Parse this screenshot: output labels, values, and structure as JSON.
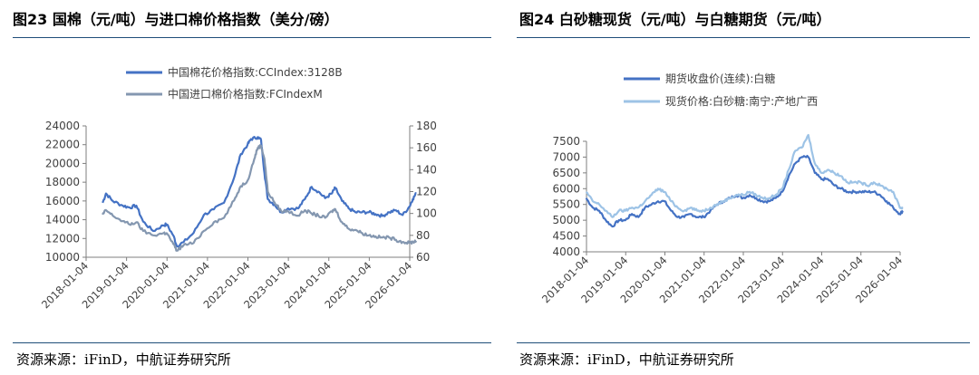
{
  "left": {
    "title": "图23 国棉（元/吨）与进口棉价格指数（美分/磅）",
    "source": "资源来源：iFinD，中航证券研究所"
  },
  "right": {
    "title": "图24 白砂糖现货（元/吨）与白糖期货（元/吨）",
    "source": "资源来源：iFinD，中航证券研究所"
  },
  "chart_data": [
    {
      "type": "line",
      "title": "图23 国棉（元/吨）与进口棉价格指数（美分/磅）",
      "x_ticks": [
        "2018-01-04",
        "2019-01-04",
        "2020-01-04",
        "2021-01-04",
        "2022-01-04",
        "2023-01-04",
        "2024-01-04",
        "2025-01-04",
        "2026-01-04"
      ],
      "ylim": [
        10000,
        24000
      ],
      "yticks": [
        10000,
        12000,
        14000,
        16000,
        18000,
        20000,
        22000,
        24000
      ],
      "y2lim": [
        60,
        180
      ],
      "y2ticks": [
        60,
        80,
        100,
        120,
        140,
        160,
        180
      ],
      "legend_position": "top-center",
      "series": [
        {
          "name": "中国棉花价格指数:CCIndex:3128B",
          "axis": "left",
          "color": "#4472c4",
          "points": [
            [
              "2018-06",
              15800
            ],
            [
              "2018-07",
              16800
            ],
            [
              "2018-09",
              16000
            ],
            [
              "2018-12",
              15500
            ],
            [
              "2019-02",
              15300
            ],
            [
              "2019-04",
              15500
            ],
            [
              "2019-06",
              13800
            ],
            [
              "2019-09",
              12800
            ],
            [
              "2019-12",
              13400
            ],
            [
              "2020-01",
              13500
            ],
            [
              "2020-03",
              12300
            ],
            [
              "2020-04",
              11200
            ],
            [
              "2020-06",
              11600
            ],
            [
              "2020-09",
              12600
            ],
            [
              "2020-12",
              14500
            ],
            [
              "2021-03",
              15100
            ],
            [
              "2021-06",
              15800
            ],
            [
              "2021-09",
              18500
            ],
            [
              "2021-11",
              21000
            ],
            [
              "2022-01",
              22000
            ],
            [
              "2022-02",
              22600
            ],
            [
              "2022-04",
              22800
            ],
            [
              "2022-05",
              22500
            ],
            [
              "2022-06",
              19000
            ],
            [
              "2022-07",
              16200
            ],
            [
              "2022-09",
              15600
            ],
            [
              "2022-11",
              14800
            ],
            [
              "2023-01",
              15200
            ],
            [
              "2023-04",
              15200
            ],
            [
              "2023-06",
              16200
            ],
            [
              "2023-08",
              17500
            ],
            [
              "2023-10",
              17000
            ],
            [
              "2023-12",
              16300
            ],
            [
              "2024-02",
              16800
            ],
            [
              "2024-03",
              17400
            ],
            [
              "2024-05",
              16000
            ],
            [
              "2024-07",
              15200
            ],
            [
              "2024-09",
              14800
            ],
            [
              "2024-11",
              14800
            ],
            [
              "2025-01",
              14800
            ],
            [
              "2025-03",
              14600
            ],
            [
              "2025-05",
              14400
            ],
            [
              "2025-07",
              14800
            ],
            [
              "2025-09",
              15000
            ],
            [
              "2025-11",
              14500
            ],
            [
              "2026-01",
              15400
            ],
            [
              "2026-02",
              16200
            ],
            [
              "2026-03",
              16800
            ]
          ]
        },
        {
          "name": "中国进口棉价格指数:FCIndexM",
          "axis": "right",
          "color": "#8497b0",
          "points": [
            [
              "2018-06",
              99
            ],
            [
              "2018-07",
              103
            ],
            [
              "2018-09",
              98
            ],
            [
              "2018-12",
              93
            ],
            [
              "2019-02",
              90
            ],
            [
              "2019-04",
              92
            ],
            [
              "2019-06",
              84
            ],
            [
              "2019-09",
              80
            ],
            [
              "2019-12",
              82
            ],
            [
              "2020-01",
              82
            ],
            [
              "2020-03",
              72
            ],
            [
              "2020-04",
              66
            ],
            [
              "2020-06",
              71
            ],
            [
              "2020-09",
              73
            ],
            [
              "2020-12",
              84
            ],
            [
              "2021-03",
              92
            ],
            [
              "2021-06",
              96
            ],
            [
              "2021-09",
              112
            ],
            [
              "2021-11",
              125
            ],
            [
              "2022-01",
              130
            ],
            [
              "2022-03",
              150
            ],
            [
              "2022-04",
              160
            ],
            [
              "2022-05",
              162
            ],
            [
              "2022-06",
              150
            ],
            [
              "2022-07",
              120
            ],
            [
              "2022-09",
              110
            ],
            [
              "2022-11",
              102
            ],
            [
              "2023-01",
              102
            ],
            [
              "2023-04",
              98
            ],
            [
              "2023-06",
              103
            ],
            [
              "2023-08",
              100
            ],
            [
              "2023-10",
              98
            ],
            [
              "2023-12",
              96
            ],
            [
              "2024-02",
              102
            ],
            [
              "2024-03",
              104
            ],
            [
              "2024-05",
              92
            ],
            [
              "2024-07",
              86
            ],
            [
              "2024-09",
              85
            ],
            [
              "2024-11",
              82
            ],
            [
              "2025-01",
              80
            ],
            [
              "2025-03",
              79
            ],
            [
              "2025-05",
              78
            ],
            [
              "2025-07",
              78
            ],
            [
              "2025-09",
              76
            ],
            [
              "2025-11",
              74
            ],
            [
              "2026-01",
              73
            ],
            [
              "2026-02",
              74
            ],
            [
              "2026-03",
              75
            ]
          ]
        }
      ]
    },
    {
      "type": "line",
      "title": "图24 白砂糖现货（元/吨）与白糖期货（元/吨）",
      "x_ticks": [
        "2018-01-04",
        "2019-01-04",
        "2020-01-04",
        "2021-01-04",
        "2022-01-04",
        "2023-01-04",
        "2024-01-04",
        "2025-01-04",
        "2026-01-04"
      ],
      "ylim": [
        4000,
        7500
      ],
      "yticks": [
        4000,
        4500,
        5000,
        5500,
        6000,
        6500,
        7000,
        7500
      ],
      "legend_position": "top-center",
      "series": [
        {
          "name": "期货收盘价(连续):白糖",
          "axis": "left",
          "color": "#4472c4",
          "points": [
            [
              "2018-01",
              5700
            ],
            [
              "2018-03",
              5400
            ],
            [
              "2018-05",
              5300
            ],
            [
              "2018-07",
              5000
            ],
            [
              "2018-09",
              4800
            ],
            [
              "2018-11",
              5000
            ],
            [
              "2019-01",
              5000
            ],
            [
              "2019-03",
              5200
            ],
            [
              "2019-05",
              5100
            ],
            [
              "2019-07",
              5400
            ],
            [
              "2019-09",
              5500
            ],
            [
              "2019-11",
              5600
            ],
            [
              "2020-01",
              5600
            ],
            [
              "2020-03",
              5300
            ],
            [
              "2020-05",
              5100
            ],
            [
              "2020-07",
              5100
            ],
            [
              "2020-09",
              5200
            ],
            [
              "2020-11",
              5100
            ],
            [
              "2021-01",
              5100
            ],
            [
              "2021-03",
              5300
            ],
            [
              "2021-05",
              5500
            ],
            [
              "2021-07",
              5600
            ],
            [
              "2021-09",
              5700
            ],
            [
              "2021-11",
              5800
            ],
            [
              "2022-01",
              5700
            ],
            [
              "2022-03",
              5800
            ],
            [
              "2022-05",
              5700
            ],
            [
              "2022-07",
              5600
            ],
            [
              "2022-09",
              5600
            ],
            [
              "2022-11",
              5700
            ],
            [
              "2023-01",
              5900
            ],
            [
              "2023-03",
              6400
            ],
            [
              "2023-05",
              6800
            ],
            [
              "2023-07",
              7000
            ],
            [
              "2023-09",
              7000
            ],
            [
              "2023-11",
              6500
            ],
            [
              "2024-01",
              6300
            ],
            [
              "2024-03",
              6300
            ],
            [
              "2024-05",
              6100
            ],
            [
              "2024-07",
              6000
            ],
            [
              "2024-09",
              5900
            ],
            [
              "2024-11",
              5900
            ],
            [
              "2025-01",
              5900
            ],
            [
              "2025-03",
              5900
            ],
            [
              "2025-05",
              5900
            ],
            [
              "2025-07",
              5800
            ],
            [
              "2025-09",
              5600
            ],
            [
              "2025-11",
              5400
            ],
            [
              "2026-01",
              5200
            ],
            [
              "2026-02",
              5300
            ]
          ]
        },
        {
          "name": "现货价格:白砂糖:南宁:产地广西",
          "axis": "left",
          "color": "#9dc3e6",
          "points": [
            [
              "2018-01",
              5900
            ],
            [
              "2018-03",
              5600
            ],
            [
              "2018-05",
              5500
            ],
            [
              "2018-07",
              5300
            ],
            [
              "2018-09",
              5100
            ],
            [
              "2018-11",
              5300
            ],
            [
              "2019-01",
              5300
            ],
            [
              "2019-03",
              5400
            ],
            [
              "2019-05",
              5400
            ],
            [
              "2019-07",
              5600
            ],
            [
              "2019-09",
              5800
            ],
            [
              "2019-11",
              6000
            ],
            [
              "2020-01",
              5900
            ],
            [
              "2020-03",
              5600
            ],
            [
              "2020-05",
              5400
            ],
            [
              "2020-07",
              5300
            ],
            [
              "2020-09",
              5400
            ],
            [
              "2020-11",
              5300
            ],
            [
              "2021-01",
              5300
            ],
            [
              "2021-03",
              5400
            ],
            [
              "2021-05",
              5500
            ],
            [
              "2021-07",
              5600
            ],
            [
              "2021-09",
              5700
            ],
            [
              "2021-11",
              5800
            ],
            [
              "2022-01",
              5800
            ],
            [
              "2022-03",
              5900
            ],
            [
              "2022-05",
              5800
            ],
            [
              "2022-07",
              5700
            ],
            [
              "2022-09",
              5700
            ],
            [
              "2022-11",
              5800
            ],
            [
              "2023-01",
              6000
            ],
            [
              "2023-03",
              6600
            ],
            [
              "2023-05",
              7200
            ],
            [
              "2023-07",
              7300
            ],
            [
              "2023-09",
              7700
            ],
            [
              "2023-11",
              6800
            ],
            [
              "2024-01",
              6500
            ],
            [
              "2024-03",
              6600
            ],
            [
              "2024-05",
              6500
            ],
            [
              "2024-07",
              6400
            ],
            [
              "2024-09",
              6200
            ],
            [
              "2024-11",
              6200
            ],
            [
              "2025-01",
              6200
            ],
            [
              "2025-03",
              6100
            ],
            [
              "2025-05",
              6200
            ],
            [
              "2025-07",
              6100
            ],
            [
              "2025-09",
              6000
            ],
            [
              "2025-11",
              5900
            ],
            [
              "2026-01",
              5400
            ],
            [
              "2026-02",
              5400
            ]
          ]
        }
      ]
    }
  ]
}
